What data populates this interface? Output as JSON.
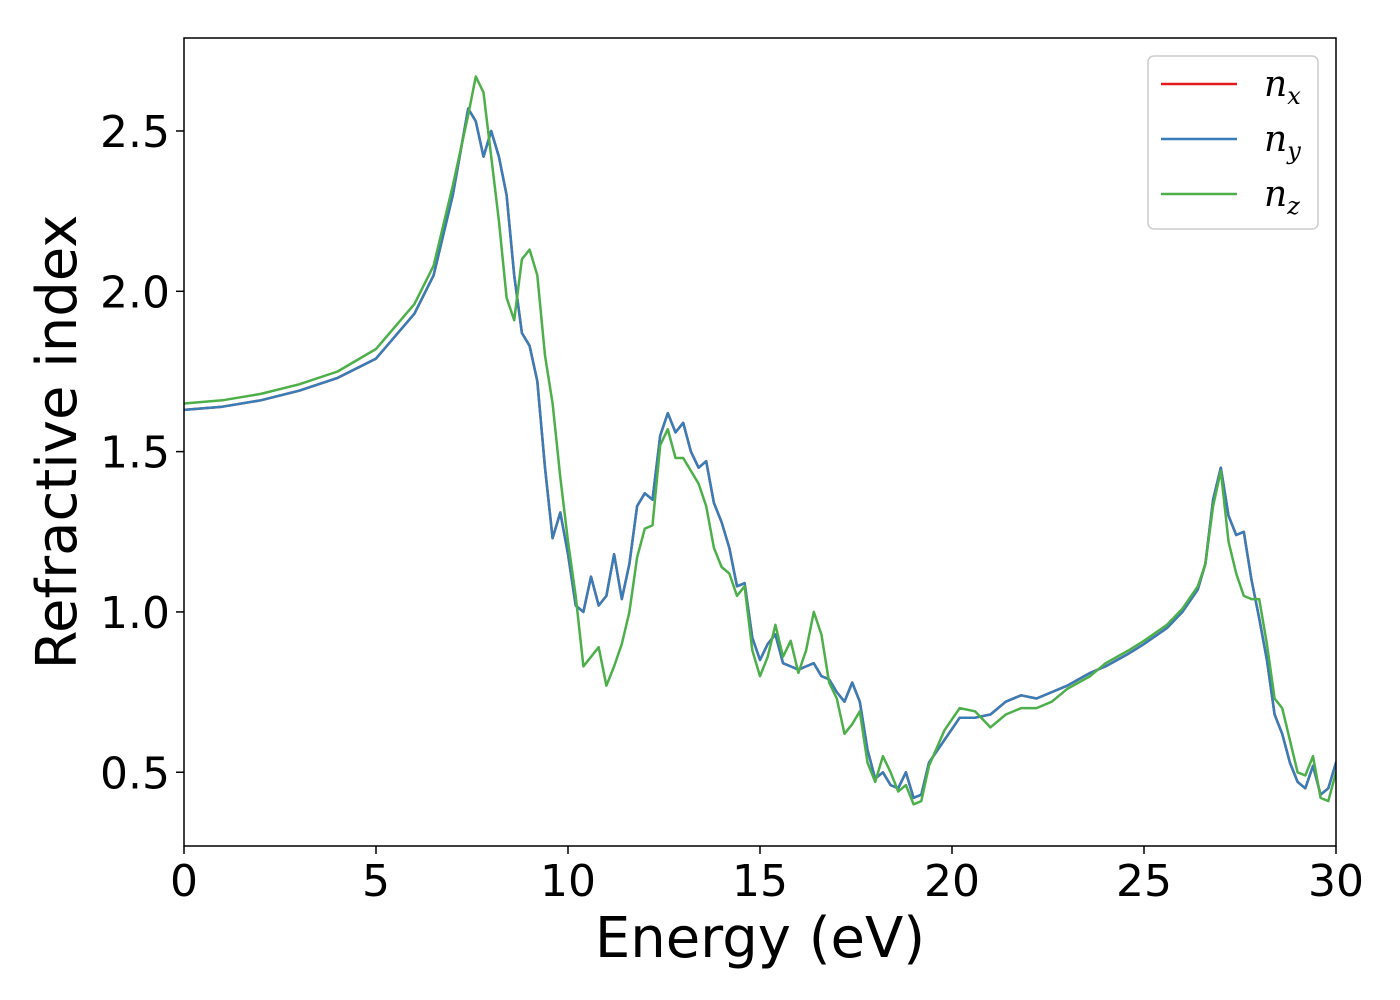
{
  "chart_data": {
    "type": "line",
    "title": "",
    "xlabel": "Energy (eV)",
    "ylabel": "Refractive index",
    "xlim": [
      0,
      30
    ],
    "ylim": [
      0.27,
      2.79
    ],
    "xticks": [
      "0",
      "5",
      "10",
      "15",
      "20",
      "25",
      "30"
    ],
    "yticks": [
      "0.5",
      "1.0",
      "1.5",
      "2.0",
      "2.5"
    ],
    "grid": false,
    "legend_position": "top-right",
    "series": [
      {
        "name": "n_x",
        "legend_base": "n",
        "legend_sub": "x",
        "color": "#e41a1c",
        "points": [
          [
            0,
            1.63
          ],
          [
            1,
            1.64
          ],
          [
            2,
            1.66
          ],
          [
            3,
            1.69
          ],
          [
            4,
            1.73
          ],
          [
            5,
            1.79
          ],
          [
            6,
            1.93
          ],
          [
            6.5,
            2.05
          ],
          [
            7,
            2.3
          ],
          [
            7.4,
            2.57
          ],
          [
            7.6,
            2.53
          ],
          [
            7.8,
            2.42
          ],
          [
            8,
            2.5
          ],
          [
            8.2,
            2.42
          ],
          [
            8.4,
            2.3
          ],
          [
            8.6,
            2.05
          ],
          [
            8.8,
            1.87
          ],
          [
            9,
            1.83
          ],
          [
            9.2,
            1.72
          ],
          [
            9.4,
            1.45
          ],
          [
            9.6,
            1.23
          ],
          [
            9.8,
            1.31
          ],
          [
            10,
            1.18
          ],
          [
            10.2,
            1.02
          ],
          [
            10.4,
            1.0
          ],
          [
            10.6,
            1.11
          ],
          [
            10.8,
            1.02
          ],
          [
            11,
            1.05
          ],
          [
            11.2,
            1.18
          ],
          [
            11.4,
            1.04
          ],
          [
            11.6,
            1.15
          ],
          [
            11.8,
            1.33
          ],
          [
            12,
            1.37
          ],
          [
            12.2,
            1.35
          ],
          [
            12.4,
            1.55
          ],
          [
            12.6,
            1.62
          ],
          [
            12.8,
            1.56
          ],
          [
            13,
            1.59
          ],
          [
            13.2,
            1.5
          ],
          [
            13.4,
            1.45
          ],
          [
            13.6,
            1.47
          ],
          [
            13.8,
            1.34
          ],
          [
            14,
            1.28
          ],
          [
            14.2,
            1.2
          ],
          [
            14.4,
            1.08
          ],
          [
            14.6,
            1.09
          ],
          [
            14.8,
            0.92
          ],
          [
            15,
            0.85
          ],
          [
            15.2,
            0.9
          ],
          [
            15.4,
            0.93
          ],
          [
            15.6,
            0.84
          ],
          [
            15.8,
            0.83
          ],
          [
            16,
            0.82
          ],
          [
            16.2,
            0.83
          ],
          [
            16.4,
            0.84
          ],
          [
            16.6,
            0.8
          ],
          [
            16.8,
            0.79
          ],
          [
            17,
            0.75
          ],
          [
            17.2,
            0.72
          ],
          [
            17.4,
            0.78
          ],
          [
            17.6,
            0.72
          ],
          [
            17.8,
            0.57
          ],
          [
            18,
            0.48
          ],
          [
            18.2,
            0.5
          ],
          [
            18.4,
            0.46
          ],
          [
            18.6,
            0.45
          ],
          [
            18.8,
            0.5
          ],
          [
            19,
            0.42
          ],
          [
            19.2,
            0.43
          ],
          [
            19.4,
            0.53
          ],
          [
            19.8,
            0.6
          ],
          [
            20.2,
            0.67
          ],
          [
            20.6,
            0.67
          ],
          [
            21,
            0.68
          ],
          [
            21.4,
            0.72
          ],
          [
            21.8,
            0.74
          ],
          [
            22.2,
            0.73
          ],
          [
            22.6,
            0.75
          ],
          [
            23,
            0.77
          ],
          [
            23.6,
            0.81
          ],
          [
            24,
            0.83
          ],
          [
            24.6,
            0.87
          ],
          [
            25,
            0.9
          ],
          [
            25.6,
            0.95
          ],
          [
            26,
            1.0
          ],
          [
            26.4,
            1.07
          ],
          [
            26.6,
            1.15
          ],
          [
            26.8,
            1.35
          ],
          [
            27,
            1.45
          ],
          [
            27.2,
            1.3
          ],
          [
            27.4,
            1.24
          ],
          [
            27.6,
            1.25
          ],
          [
            27.8,
            1.1
          ],
          [
            28,
            0.98
          ],
          [
            28.2,
            0.85
          ],
          [
            28.4,
            0.68
          ],
          [
            28.6,
            0.62
          ],
          [
            28.8,
            0.53
          ],
          [
            29,
            0.47
          ],
          [
            29.2,
            0.45
          ],
          [
            29.4,
            0.52
          ],
          [
            29.6,
            0.43
          ],
          [
            29.8,
            0.45
          ],
          [
            30,
            0.53
          ]
        ]
      },
      {
        "name": "n_y",
        "legend_base": "n",
        "legend_sub": "y",
        "color": "#377eb8",
        "points": [
          [
            0,
            1.63
          ],
          [
            1,
            1.64
          ],
          [
            2,
            1.66
          ],
          [
            3,
            1.69
          ],
          [
            4,
            1.73
          ],
          [
            5,
            1.79
          ],
          [
            6,
            1.93
          ],
          [
            6.5,
            2.05
          ],
          [
            7,
            2.3
          ],
          [
            7.4,
            2.57
          ],
          [
            7.6,
            2.53
          ],
          [
            7.8,
            2.42
          ],
          [
            8,
            2.5
          ],
          [
            8.2,
            2.42
          ],
          [
            8.4,
            2.3
          ],
          [
            8.6,
            2.05
          ],
          [
            8.8,
            1.87
          ],
          [
            9,
            1.83
          ],
          [
            9.2,
            1.72
          ],
          [
            9.4,
            1.45
          ],
          [
            9.6,
            1.23
          ],
          [
            9.8,
            1.31
          ],
          [
            10,
            1.18
          ],
          [
            10.2,
            1.02
          ],
          [
            10.4,
            1.0
          ],
          [
            10.6,
            1.11
          ],
          [
            10.8,
            1.02
          ],
          [
            11,
            1.05
          ],
          [
            11.2,
            1.18
          ],
          [
            11.4,
            1.04
          ],
          [
            11.6,
            1.15
          ],
          [
            11.8,
            1.33
          ],
          [
            12,
            1.37
          ],
          [
            12.2,
            1.35
          ],
          [
            12.4,
            1.55
          ],
          [
            12.6,
            1.62
          ],
          [
            12.8,
            1.56
          ],
          [
            13,
            1.59
          ],
          [
            13.2,
            1.5
          ],
          [
            13.4,
            1.45
          ],
          [
            13.6,
            1.47
          ],
          [
            13.8,
            1.34
          ],
          [
            14,
            1.28
          ],
          [
            14.2,
            1.2
          ],
          [
            14.4,
            1.08
          ],
          [
            14.6,
            1.09
          ],
          [
            14.8,
            0.92
          ],
          [
            15,
            0.85
          ],
          [
            15.2,
            0.9
          ],
          [
            15.4,
            0.93
          ],
          [
            15.6,
            0.84
          ],
          [
            15.8,
            0.83
          ],
          [
            16,
            0.82
          ],
          [
            16.2,
            0.83
          ],
          [
            16.4,
            0.84
          ],
          [
            16.6,
            0.8
          ],
          [
            16.8,
            0.79
          ],
          [
            17,
            0.75
          ],
          [
            17.2,
            0.72
          ],
          [
            17.4,
            0.78
          ],
          [
            17.6,
            0.72
          ],
          [
            17.8,
            0.57
          ],
          [
            18,
            0.48
          ],
          [
            18.2,
            0.5
          ],
          [
            18.4,
            0.46
          ],
          [
            18.6,
            0.45
          ],
          [
            18.8,
            0.5
          ],
          [
            19,
            0.42
          ],
          [
            19.2,
            0.43
          ],
          [
            19.4,
            0.53
          ],
          [
            19.8,
            0.6
          ],
          [
            20.2,
            0.67
          ],
          [
            20.6,
            0.67
          ],
          [
            21,
            0.68
          ],
          [
            21.4,
            0.72
          ],
          [
            21.8,
            0.74
          ],
          [
            22.2,
            0.73
          ],
          [
            22.6,
            0.75
          ],
          [
            23,
            0.77
          ],
          [
            23.6,
            0.81
          ],
          [
            24,
            0.83
          ],
          [
            24.6,
            0.87
          ],
          [
            25,
            0.9
          ],
          [
            25.6,
            0.95
          ],
          [
            26,
            1.0
          ],
          [
            26.4,
            1.07
          ],
          [
            26.6,
            1.15
          ],
          [
            26.8,
            1.35
          ],
          [
            27,
            1.45
          ],
          [
            27.2,
            1.3
          ],
          [
            27.4,
            1.24
          ],
          [
            27.6,
            1.25
          ],
          [
            27.8,
            1.1
          ],
          [
            28,
            0.98
          ],
          [
            28.2,
            0.85
          ],
          [
            28.4,
            0.68
          ],
          [
            28.6,
            0.62
          ],
          [
            28.8,
            0.53
          ],
          [
            29,
            0.47
          ],
          [
            29.2,
            0.45
          ],
          [
            29.4,
            0.52
          ],
          [
            29.6,
            0.43
          ],
          [
            29.8,
            0.45
          ],
          [
            30,
            0.53
          ]
        ]
      },
      {
        "name": "n_z",
        "legend_base": "n",
        "legend_sub": "z",
        "color": "#4daf4a",
        "points": [
          [
            0,
            1.65
          ],
          [
            1,
            1.66
          ],
          [
            2,
            1.68
          ],
          [
            3,
            1.71
          ],
          [
            4,
            1.75
          ],
          [
            5,
            1.82
          ],
          [
            6,
            1.96
          ],
          [
            6.5,
            2.08
          ],
          [
            7,
            2.33
          ],
          [
            7.4,
            2.55
          ],
          [
            7.6,
            2.67
          ],
          [
            7.8,
            2.62
          ],
          [
            8,
            2.42
          ],
          [
            8.2,
            2.22
          ],
          [
            8.4,
            1.98
          ],
          [
            8.6,
            1.91
          ],
          [
            8.8,
            2.1
          ],
          [
            9,
            2.13
          ],
          [
            9.2,
            2.05
          ],
          [
            9.4,
            1.8
          ],
          [
            9.6,
            1.65
          ],
          [
            9.8,
            1.42
          ],
          [
            10,
            1.22
          ],
          [
            10.2,
            1.05
          ],
          [
            10.4,
            0.83
          ],
          [
            10.6,
            0.86
          ],
          [
            10.8,
            0.89
          ],
          [
            11,
            0.77
          ],
          [
            11.2,
            0.83
          ],
          [
            11.4,
            0.9
          ],
          [
            11.6,
            1.0
          ],
          [
            11.8,
            1.17
          ],
          [
            12,
            1.26
          ],
          [
            12.2,
            1.27
          ],
          [
            12.4,
            1.52
          ],
          [
            12.6,
            1.57
          ],
          [
            12.8,
            1.48
          ],
          [
            13,
            1.48
          ],
          [
            13.2,
            1.44
          ],
          [
            13.4,
            1.4
          ],
          [
            13.6,
            1.33
          ],
          [
            13.8,
            1.2
          ],
          [
            14,
            1.14
          ],
          [
            14.2,
            1.12
          ],
          [
            14.4,
            1.05
          ],
          [
            14.6,
            1.08
          ],
          [
            14.8,
            0.88
          ],
          [
            15,
            0.8
          ],
          [
            15.2,
            0.86
          ],
          [
            15.4,
            0.96
          ],
          [
            15.6,
            0.86
          ],
          [
            15.8,
            0.91
          ],
          [
            16,
            0.81
          ],
          [
            16.2,
            0.88
          ],
          [
            16.4,
            1.0
          ],
          [
            16.6,
            0.93
          ],
          [
            16.8,
            0.78
          ],
          [
            17,
            0.73
          ],
          [
            17.2,
            0.62
          ],
          [
            17.4,
            0.65
          ],
          [
            17.6,
            0.69
          ],
          [
            17.8,
            0.53
          ],
          [
            18,
            0.47
          ],
          [
            18.2,
            0.55
          ],
          [
            18.4,
            0.5
          ],
          [
            18.6,
            0.44
          ],
          [
            18.8,
            0.46
          ],
          [
            19,
            0.4
          ],
          [
            19.2,
            0.41
          ],
          [
            19.4,
            0.52
          ],
          [
            19.8,
            0.63
          ],
          [
            20.2,
            0.7
          ],
          [
            20.6,
            0.69
          ],
          [
            21,
            0.64
          ],
          [
            21.4,
            0.68
          ],
          [
            21.8,
            0.7
          ],
          [
            22.2,
            0.7
          ],
          [
            22.6,
            0.72
          ],
          [
            23,
            0.76
          ],
          [
            23.6,
            0.8
          ],
          [
            24,
            0.84
          ],
          [
            24.6,
            0.88
          ],
          [
            25,
            0.91
          ],
          [
            25.6,
            0.96
          ],
          [
            26,
            1.01
          ],
          [
            26.4,
            1.08
          ],
          [
            26.6,
            1.15
          ],
          [
            26.8,
            1.33
          ],
          [
            27,
            1.44
          ],
          [
            27.2,
            1.22
          ],
          [
            27.4,
            1.12
          ],
          [
            27.6,
            1.05
          ],
          [
            27.8,
            1.04
          ],
          [
            28,
            1.04
          ],
          [
            28.2,
            0.9
          ],
          [
            28.4,
            0.73
          ],
          [
            28.6,
            0.7
          ],
          [
            28.8,
            0.6
          ],
          [
            29,
            0.5
          ],
          [
            29.2,
            0.49
          ],
          [
            29.4,
            0.55
          ],
          [
            29.6,
            0.42
          ],
          [
            29.8,
            0.41
          ],
          [
            30,
            0.5
          ]
        ]
      }
    ]
  }
}
